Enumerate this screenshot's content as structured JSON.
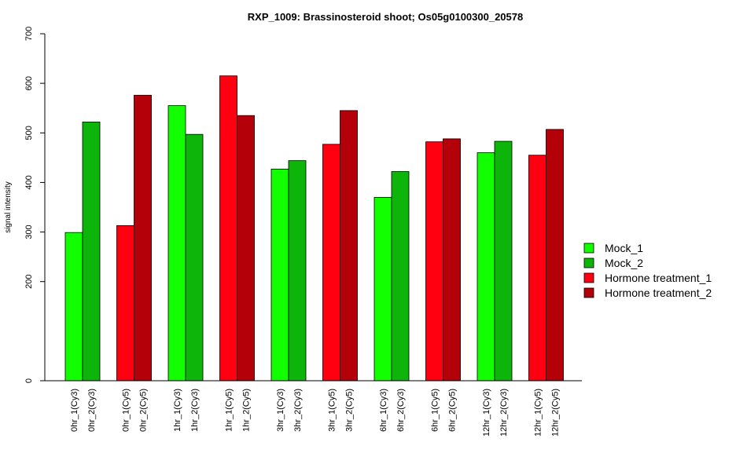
{
  "chart_data": {
    "type": "bar",
    "title": "RXP_1009: Brassinosteroid shoot; Os05g0100300_20578",
    "xlabel": "",
    "ylabel": "signal intensity",
    "yticks": [
      0,
      200,
      300,
      400,
      500,
      600,
      700
    ],
    "ylim": [
      0,
      700
    ],
    "groups": [
      {
        "bars": [
          {
            "label": "0hr_1(Cy3)",
            "value": 299,
            "series": "Mock_1"
          },
          {
            "label": "0hr_2(Cy3)",
            "value": 522,
            "series": "Mock_2"
          }
        ]
      },
      {
        "bars": [
          {
            "label": "0hr_1(Cy5)",
            "value": 313,
            "series": "Hormone treatment_1"
          },
          {
            "label": "0hr_2(Cy5)",
            "value": 576,
            "series": "Hormone treatment_2"
          }
        ]
      },
      {
        "bars": [
          {
            "label": "1hr_1(Cy3)",
            "value": 555,
            "series": "Mock_1"
          },
          {
            "label": "1hr_2(Cy3)",
            "value": 497,
            "series": "Mock_2"
          }
        ]
      },
      {
        "bars": [
          {
            "label": "1hr_1(Cy5)",
            "value": 615,
            "series": "Hormone treatment_1"
          },
          {
            "label": "1hr_2(Cy5)",
            "value": 535,
            "series": "Hormone treatment_2"
          }
        ]
      },
      {
        "bars": [
          {
            "label": "3hr_1(Cy3)",
            "value": 427,
            "series": "Mock_1"
          },
          {
            "label": "3hr_2(Cy3)",
            "value": 444,
            "series": "Mock_2"
          }
        ]
      },
      {
        "bars": [
          {
            "label": "3hr_1(Cy5)",
            "value": 477,
            "series": "Hormone treatment_1"
          },
          {
            "label": "3hr_2(Cy5)",
            "value": 545,
            "series": "Hormone treatment_2"
          }
        ]
      },
      {
        "bars": [
          {
            "label": "6hr_1(Cy3)",
            "value": 370,
            "series": "Mock_1"
          },
          {
            "label": "6hr_2(Cy3)",
            "value": 422,
            "series": "Mock_2"
          }
        ]
      },
      {
        "bars": [
          {
            "label": "6hr_1(Cy5)",
            "value": 482,
            "series": "Hormone treatment_1"
          },
          {
            "label": "6hr_2(Cy5)",
            "value": 488,
            "series": "Hormone treatment_2"
          }
        ]
      },
      {
        "bars": [
          {
            "label": "12hr_1(Cy3)",
            "value": 460,
            "series": "Mock_1"
          },
          {
            "label": "12hr_2(Cy3)",
            "value": 483,
            "series": "Mock_2"
          }
        ]
      },
      {
        "bars": [
          {
            "label": "12hr_1(Cy5)",
            "value": 455,
            "series": "Hormone treatment_1"
          },
          {
            "label": "12hr_2(Cy5)",
            "value": 507,
            "series": "Hormone treatment_2"
          }
        ]
      }
    ],
    "legend": {
      "position": "right",
      "entries": [
        {
          "name": "Mock_1",
          "color": "#11ff00"
        },
        {
          "name": "Mock_2",
          "color": "#0db40a"
        },
        {
          "name": "Hormone treatment_1",
          "color": "#ff0010"
        },
        {
          "name": "Hormone treatment_2",
          "color": "#b40008"
        }
      ]
    }
  }
}
